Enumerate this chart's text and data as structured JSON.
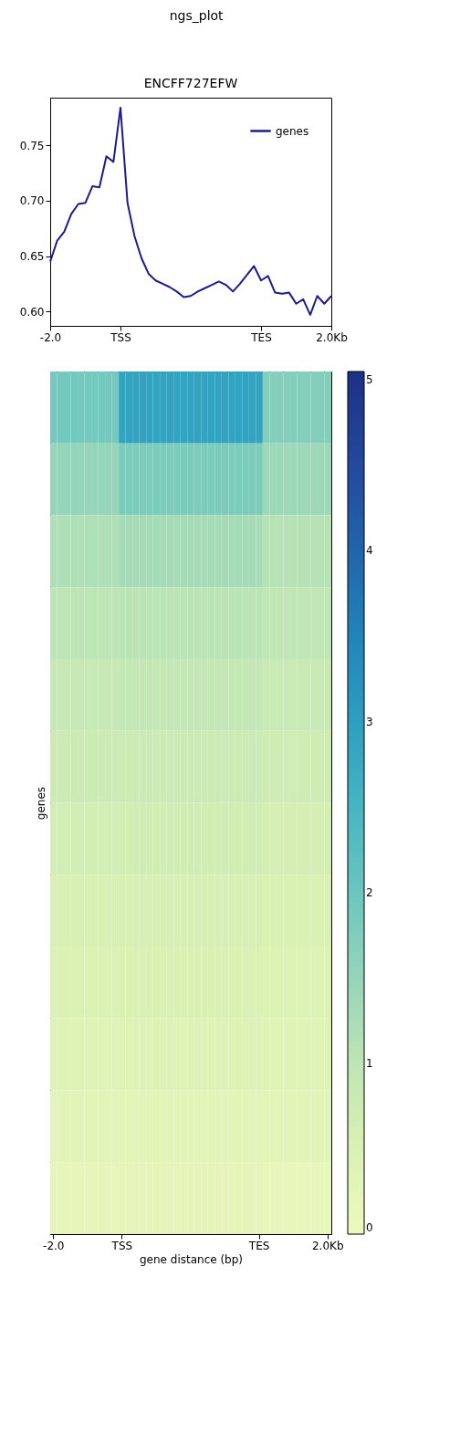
{
  "chart_data": [
    {
      "type": "line",
      "title": "ngs_plot",
      "subtitle": "ENCFF727EFW",
      "categories": [
        "-2.0",
        null,
        null,
        null,
        null,
        null,
        null,
        null,
        null,
        null,
        "TSS",
        null,
        null,
        null,
        null,
        null,
        null,
        null,
        null,
        null,
        null,
        null,
        null,
        null,
        null,
        null,
        null,
        null,
        null,
        null,
        "TES",
        null,
        null,
        null,
        null,
        null,
        null,
        null,
        null,
        null,
        "2.0Kb"
      ],
      "ylim": [
        0.587,
        0.793
      ],
      "yticks": [
        {
          "value": 0.6,
          "label": "0.60"
        },
        {
          "value": 0.65,
          "label": "0.65"
        },
        {
          "value": 0.7,
          "label": "0.70"
        },
        {
          "value": 0.75,
          "label": "0.75"
        }
      ],
      "grid": false,
      "legend": "top right",
      "series": [
        {
          "name": "genes",
          "color": "#1c1c8c",
          "values": [
            0.645,
            0.664,
            0.672,
            0.688,
            0.697,
            0.698,
            0.713,
            0.712,
            0.74,
            0.735,
            0.784,
            0.698,
            0.668,
            0.648,
            0.634,
            0.628,
            0.625,
            0.622,
            0.618,
            0.613,
            0.614,
            0.618,
            0.621,
            0.624,
            0.627,
            0.624,
            0.618,
            0.625,
            0.633,
            0.641,
            0.628,
            0.632,
            0.617,
            0.616,
            0.617,
            0.607,
            0.611,
            0.597,
            0.614,
            0.607,
            0.614
          ]
        }
      ]
    },
    {
      "type": "heatmap",
      "xlabel": "gene distance (bp)",
      "ylabel": "genes",
      "categories": [
        "-2.0",
        null,
        null,
        null,
        null,
        null,
        null,
        null,
        null,
        null,
        "TSS",
        null,
        null,
        null,
        null,
        null,
        null,
        null,
        null,
        null,
        null,
        null,
        null,
        null,
        null,
        null,
        null,
        null,
        null,
        null,
        "TES",
        null,
        null,
        null,
        null,
        null,
        null,
        null,
        null,
        null,
        "2.0Kb"
      ],
      "clim": [
        0,
        5.05
      ],
      "cticks": [
        0,
        1,
        2,
        3,
        4,
        5
      ],
      "y_categories": [
        null,
        null,
        null,
        null,
        null,
        null,
        null,
        null,
        null,
        null,
        null,
        null
      ],
      "cells": [
        [
          1.9,
          1.9,
          1.9,
          1.9,
          1.9,
          1.9,
          1.9,
          1.9,
          1.9,
          1.9,
          2.9,
          2.9,
          2.9,
          2.9,
          2.9,
          2.9,
          2.9,
          2.9,
          2.9,
          2.9,
          2.9,
          2.9,
          2.9,
          2.9,
          2.9,
          2.9,
          2.9,
          2.9,
          2.9,
          2.9,
          2.9,
          1.7,
          1.7,
          1.7,
          1.7,
          1.7,
          1.7,
          1.7,
          1.7,
          1.7,
          1.7
        ],
        [
          1.5,
          1.5,
          1.5,
          1.5,
          1.5,
          1.5,
          1.5,
          1.5,
          1.5,
          1.5,
          1.8,
          1.8,
          1.8,
          1.8,
          1.8,
          1.8,
          1.8,
          1.8,
          1.8,
          1.8,
          1.8,
          1.8,
          1.8,
          1.8,
          1.8,
          1.8,
          1.8,
          1.8,
          1.8,
          1.8,
          1.8,
          1.4,
          1.4,
          1.4,
          1.4,
          1.4,
          1.4,
          1.4,
          1.4,
          1.4,
          1.4
        ],
        [
          1.2,
          1.2,
          1.2,
          1.2,
          1.2,
          1.2,
          1.2,
          1.2,
          1.2,
          1.2,
          1.3,
          1.3,
          1.3,
          1.3,
          1.3,
          1.3,
          1.3,
          1.3,
          1.3,
          1.3,
          1.3,
          1.3,
          1.3,
          1.3,
          1.3,
          1.3,
          1.3,
          1.3,
          1.3,
          1.3,
          1.3,
          1.1,
          1.1,
          1.1,
          1.1,
          1.1,
          1.1,
          1.1,
          1.1,
          1.1,
          1.1
        ],
        [
          1.0,
          1.0,
          1.0,
          1.0,
          1.0,
          1.0,
          1.0,
          1.0,
          1.0,
          1.0,
          1.05,
          1.05,
          1.05,
          1.05,
          1.05,
          1.05,
          1.05,
          1.05,
          1.05,
          1.05,
          1.05,
          1.05,
          1.05,
          1.05,
          1.05,
          1.05,
          1.05,
          1.05,
          1.05,
          1.05,
          1.05,
          0.95,
          0.95,
          0.95,
          0.95,
          0.95,
          0.95,
          0.95,
          0.95,
          0.95,
          0.95
        ],
        [
          0.85,
          0.85,
          0.85,
          0.85,
          0.85,
          0.85,
          0.85,
          0.85,
          0.85,
          0.85,
          0.9,
          0.9,
          0.9,
          0.9,
          0.9,
          0.9,
          0.9,
          0.9,
          0.9,
          0.9,
          0.9,
          0.9,
          0.9,
          0.9,
          0.9,
          0.9,
          0.9,
          0.9,
          0.9,
          0.9,
          0.9,
          0.8,
          0.8,
          0.8,
          0.8,
          0.8,
          0.8,
          0.8,
          0.8,
          0.8,
          0.8
        ],
        [
          0.75,
          0.75,
          0.75,
          0.75,
          0.75,
          0.75,
          0.75,
          0.75,
          0.75,
          0.75,
          0.78,
          0.78,
          0.78,
          0.78,
          0.78,
          0.78,
          0.78,
          0.78,
          0.78,
          0.78,
          0.78,
          0.78,
          0.78,
          0.78,
          0.78,
          0.78,
          0.78,
          0.78,
          0.78,
          0.78,
          0.78,
          0.7,
          0.7,
          0.7,
          0.7,
          0.7,
          0.7,
          0.7,
          0.7,
          0.7,
          0.7
        ],
        [
          0.65,
          0.65,
          0.65,
          0.65,
          0.65,
          0.65,
          0.65,
          0.65,
          0.65,
          0.65,
          0.68,
          0.68,
          0.68,
          0.68,
          0.68,
          0.68,
          0.68,
          0.68,
          0.68,
          0.68,
          0.68,
          0.68,
          0.68,
          0.68,
          0.68,
          0.68,
          0.68,
          0.68,
          0.68,
          0.68,
          0.68,
          0.62,
          0.62,
          0.62,
          0.62,
          0.62,
          0.62,
          0.62,
          0.62,
          0.62,
          0.62
        ],
        [
          0.55,
          0.55,
          0.55,
          0.55,
          0.55,
          0.55,
          0.55,
          0.55,
          0.55,
          0.55,
          0.58,
          0.58,
          0.58,
          0.58,
          0.58,
          0.58,
          0.58,
          0.58,
          0.58,
          0.58,
          0.58,
          0.58,
          0.58,
          0.58,
          0.58,
          0.58,
          0.58,
          0.58,
          0.58,
          0.58,
          0.58,
          0.52,
          0.52,
          0.52,
          0.52,
          0.52,
          0.52,
          0.52,
          0.52,
          0.52,
          0.52
        ],
        [
          0.47,
          0.47,
          0.47,
          0.47,
          0.47,
          0.47,
          0.47,
          0.47,
          0.47,
          0.47,
          0.5,
          0.5,
          0.5,
          0.5,
          0.5,
          0.5,
          0.5,
          0.5,
          0.5,
          0.5,
          0.5,
          0.5,
          0.5,
          0.5,
          0.5,
          0.5,
          0.5,
          0.5,
          0.5,
          0.5,
          0.5,
          0.45,
          0.45,
          0.45,
          0.45,
          0.45,
          0.45,
          0.45,
          0.45,
          0.45,
          0.45
        ],
        [
          0.4,
          0.4,
          0.4,
          0.4,
          0.4,
          0.4,
          0.4,
          0.4,
          0.4,
          0.4,
          0.42,
          0.42,
          0.42,
          0.42,
          0.42,
          0.42,
          0.42,
          0.42,
          0.42,
          0.42,
          0.42,
          0.42,
          0.42,
          0.42,
          0.42,
          0.42,
          0.42,
          0.42,
          0.42,
          0.42,
          0.42,
          0.38,
          0.38,
          0.38,
          0.38,
          0.38,
          0.38,
          0.38,
          0.38,
          0.38,
          0.38
        ],
        [
          0.32,
          0.32,
          0.32,
          0.32,
          0.32,
          0.32,
          0.32,
          0.32,
          0.32,
          0.32,
          0.34,
          0.34,
          0.34,
          0.34,
          0.34,
          0.34,
          0.34,
          0.34,
          0.34,
          0.34,
          0.34,
          0.34,
          0.34,
          0.34,
          0.34,
          0.34,
          0.34,
          0.34,
          0.34,
          0.34,
          0.34,
          0.3,
          0.3,
          0.3,
          0.3,
          0.3,
          0.3,
          0.3,
          0.3,
          0.3,
          0.3
        ],
        [
          0.22,
          0.22,
          0.22,
          0.22,
          0.22,
          0.22,
          0.22,
          0.22,
          0.22,
          0.22,
          0.24,
          0.24,
          0.24,
          0.24,
          0.24,
          0.24,
          0.24,
          0.24,
          0.24,
          0.24,
          0.24,
          0.24,
          0.24,
          0.24,
          0.24,
          0.24,
          0.24,
          0.24,
          0.24,
          0.24,
          0.24,
          0.2,
          0.2,
          0.2,
          0.2,
          0.2,
          0.2,
          0.2,
          0.2,
          0.2,
          0.2
        ]
      ]
    }
  ]
}
